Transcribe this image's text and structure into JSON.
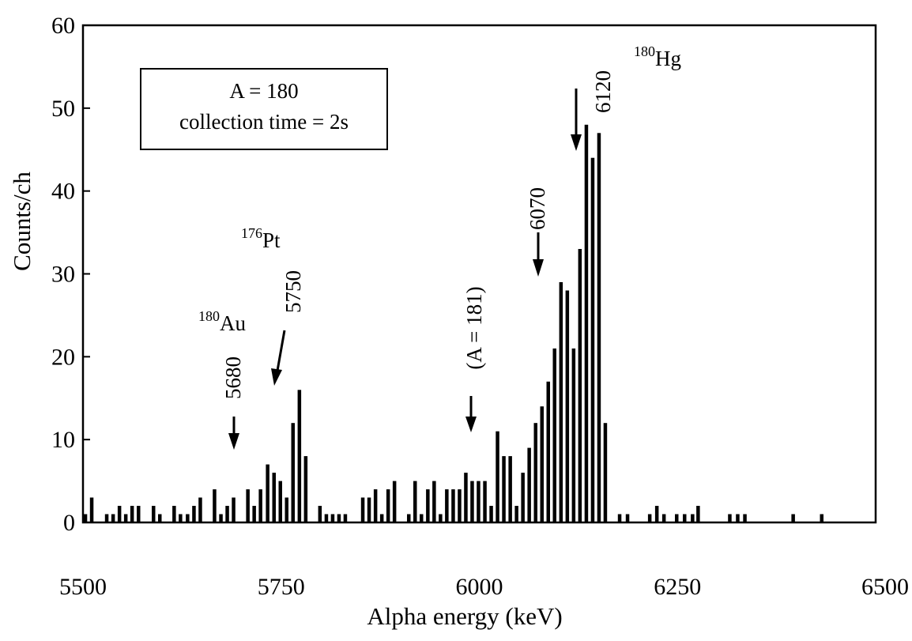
{
  "chart_data": {
    "type": "bar",
    "xlabel": "Alpha energy (keV)",
    "ylabel": "Counts/ch",
    "xlim": [
      5500,
      6500
    ],
    "ylim": [
      0,
      60
    ],
    "xticks": [
      5500,
      5750,
      6000,
      6250,
      6500
    ],
    "yticks": [
      0,
      10,
      20,
      30,
      40,
      50,
      60
    ],
    "grid": false,
    "legend_box": {
      "line1": "A = 180",
      "line2": "collection time = 2s"
    },
    "x": [
      5503,
      5511,
      5530,
      5538,
      5546,
      5554,
      5562,
      5570,
      5589,
      5597,
      5615,
      5623,
      5632,
      5640,
      5648,
      5666,
      5674,
      5682,
      5690,
      5708,
      5716,
      5724,
      5733,
      5741,
      5749,
      5757,
      5765,
      5773,
      5781,
      5799,
      5807,
      5815,
      5823,
      5831,
      5853,
      5861,
      5869,
      5877,
      5885,
      5893,
      5911,
      5919,
      5927,
      5935,
      5943,
      5951,
      5959,
      5967,
      5975,
      5983,
      5991,
      5999,
      6007,
      6015,
      6023,
      6031,
      6039,
      6047,
      6055,
      6063,
      6071,
      6079,
      6087,
      6095,
      6103,
      6111,
      6119,
      6127,
      6135,
      6143,
      6151,
      6159,
      6177,
      6187,
      6215,
      6224,
      6233,
      6249,
      6259,
      6269,
      6276,
      6316,
      6326,
      6335,
      6396,
      6432
    ],
    "values": [
      1,
      3,
      1,
      1,
      2,
      1,
      2,
      2,
      2,
      1,
      2,
      1,
      1,
      2,
      3,
      4,
      1,
      2,
      3,
      4,
      2,
      4,
      7,
      6,
      5,
      3,
      12,
      16,
      8,
      2,
      1,
      1,
      1,
      1,
      3,
      3,
      4,
      1,
      4,
      5,
      1,
      5,
      1,
      4,
      5,
      1,
      4,
      4,
      4,
      6,
      5,
      5,
      5,
      2,
      11,
      8,
      8,
      2,
      6,
      9,
      12,
      14,
      17,
      21,
      29,
      28,
      21,
      33,
      48,
      44,
      47,
      12,
      1,
      1,
      1,
      2,
      1,
      1,
      1,
      1,
      2,
      1,
      1,
      1,
      1,
      1
    ],
    "annotations": [
      {
        "mass": "180",
        "element": "Hg",
        "energy": "6120"
      },
      {
        "energy": "6070"
      },
      {
        "label": "(A = 181)"
      },
      {
        "mass": "176",
        "element": "Pt",
        "energy": "5750"
      },
      {
        "mass": "180",
        "element": "Au",
        "energy": "5680"
      }
    ]
  }
}
